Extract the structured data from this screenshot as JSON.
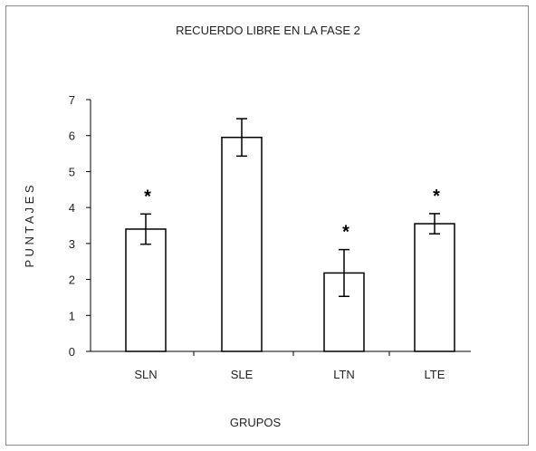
{
  "chart_data": {
    "type": "bar",
    "title": "RECUERDO LIBRE EN LA FASE 2",
    "xlabel": "GRUPOS",
    "ylabel": "P U N T A J E S",
    "categories": [
      "SLN",
      "SLE",
      "LTN",
      "LTE"
    ],
    "values": [
      3.4,
      5.95,
      2.18,
      3.55
    ],
    "error": [
      0.42,
      0.52,
      0.65,
      0.28
    ],
    "markers": [
      "*",
      "",
      "*",
      "*"
    ],
    "ylim": [
      0,
      7
    ],
    "yticks": [
      0,
      1,
      2,
      3,
      4,
      5,
      6,
      7
    ],
    "grid": false,
    "legend": "none",
    "colors": {
      "bar_fill": "#ffffff",
      "bar_stroke": "#000000",
      "axis": "#000000",
      "frame": "#8a8a8a"
    }
  }
}
